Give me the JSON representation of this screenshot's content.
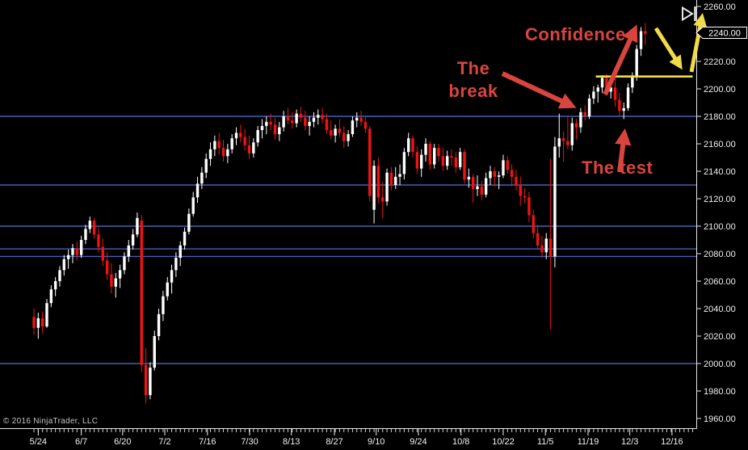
{
  "window": {
    "copyright": "© 2016 NinjaTrader, LLC"
  },
  "annotations": {
    "confidence": "Confidence",
    "break_line1": "The",
    "break_line2": "break",
    "test": "The test",
    "color_red": "#d9453e",
    "color_yellow": "#f0db4a"
  },
  "price_marker": {
    "value": "2240.00"
  },
  "chart_data": {
    "type": "candlestick",
    "title": "",
    "xlabel": "",
    "ylabel": "",
    "background": "#000000",
    "axis_text_color": "#f0f0f0",
    "y_axis": {
      "min": 1960,
      "max": 2260,
      "step": 20,
      "tick_labels": [
        "2260.00",
        "2240.00",
        "2220.00",
        "2200.00",
        "2180.00",
        "2160.00",
        "2140.00",
        "2120.00",
        "2100.00",
        "2080.00",
        "2060.00",
        "2040.00",
        "2020.00",
        "2000.00",
        "1980.00",
        "1960.00"
      ]
    },
    "x_axis": {
      "ticks": [
        {
          "label": "5/24",
          "slot": 1
        },
        {
          "label": "6/7",
          "slot": 11
        },
        {
          "label": "6/20",
          "slot": 20.6
        },
        {
          "label": "7/2",
          "slot": 30.4
        },
        {
          "label": "7/16",
          "slot": 40.3
        },
        {
          "label": "7/30",
          "slot": 50.1
        },
        {
          "label": "8/13",
          "slot": 59.8
        },
        {
          "label": "8/27",
          "slot": 69.8
        },
        {
          "label": "9/10",
          "slot": 79.5
        },
        {
          "label": "9/24",
          "slot": 89.3
        },
        {
          "label": "10/8",
          "slot": 99.2
        },
        {
          "label": "10/22",
          "slot": 109
        },
        {
          "label": "11/5",
          "slot": 118.8
        },
        {
          "label": "11/19",
          "slot": 128.7
        },
        {
          "label": "12/3",
          "slot": 138.4
        },
        {
          "label": "12/16",
          "slot": 148.2
        }
      ]
    },
    "horizontal_lines": {
      "color": "#4660b4",
      "prices": [
        2180,
        2130,
        2100,
        2083.5,
        2078,
        2000
      ]
    },
    "trendline": {
      "color": "#f0db4a",
      "price": 2209,
      "slot_start": 130.5,
      "slot_end": 153
    },
    "bars": {
      "up_color": "#ffffff",
      "down_color": "#f01410",
      "ohlc": [
        [
          2034,
          2040,
          2021,
          2026
        ],
        [
          2026,
          2037,
          2018,
          2033
        ],
        [
          2033,
          2038,
          2022,
          2027
        ],
        [
          2027,
          2047,
          2026,
          2044
        ],
        [
          2044,
          2057,
          2041,
          2054
        ],
        [
          2054,
          2063,
          2049,
          2060
        ],
        [
          2060,
          2071,
          2056,
          2068
        ],
        [
          2068,
          2079,
          2064,
          2076
        ],
        [
          2076,
          2083,
          2069,
          2079
        ],
        [
          2079,
          2087,
          2073,
          2084
        ],
        [
          2084,
          2089,
          2075,
          2079
        ],
        [
          2079,
          2093,
          2077,
          2090
        ],
        [
          2090,
          2101,
          2087,
          2098
        ],
        [
          2098,
          2107,
          2095,
          2104
        ],
        [
          2104,
          2106,
          2091,
          2094
        ],
        [
          2094,
          2099,
          2081,
          2085
        ],
        [
          2085,
          2091,
          2071,
          2075
        ],
        [
          2075,
          2081,
          2061,
          2065
        ],
        [
          2065,
          2073,
          2051,
          2056
        ],
        [
          2056,
          2066,
          2048,
          2062
        ],
        [
          2062,
          2072,
          2055,
          2068
        ],
        [
          2068,
          2081,
          2065,
          2078
        ],
        [
          2078,
          2090,
          2074,
          2086
        ],
        [
          2086,
          2098,
          2083,
          2094
        ],
        [
          2094,
          2110,
          2092,
          2106
        ],
        [
          2104,
          2108,
          1994,
          1999
        ],
        [
          1999,
          2011,
          1971,
          1977
        ],
        [
          1977,
          2001,
          1974,
          1997
        ],
        [
          1997,
          2024,
          1995,
          2020
        ],
        [
          2020,
          2040,
          2017,
          2036
        ],
        [
          2036,
          2053,
          2031,
          2049
        ],
        [
          2049,
          2063,
          2046,
          2059
        ],
        [
          2059,
          2072,
          2051,
          2068
        ],
        [
          2068,
          2081,
          2063,
          2077
        ],
        [
          2077,
          2089,
          2071,
          2086
        ],
        [
          2086,
          2099,
          2083,
          2096
        ],
        [
          2096,
          2113,
          2094,
          2109
        ],
        [
          2109,
          2125,
          2107,
          2121
        ],
        [
          2121,
          2136,
          2117,
          2131
        ],
        [
          2131,
          2143,
          2127,
          2139
        ],
        [
          2139,
          2153,
          2135,
          2149
        ],
        [
          2149,
          2161,
          2144,
          2156
        ],
        [
          2156,
          2166,
          2151,
          2162
        ],
        [
          2162,
          2168,
          2152,
          2157
        ],
        [
          2157,
          2163,
          2147,
          2151
        ],
        [
          2151,
          2160,
          2146,
          2156
        ],
        [
          2156,
          2167,
          2153,
          2164
        ],
        [
          2164,
          2172,
          2159,
          2168
        ],
        [
          2168,
          2174,
          2161,
          2165
        ],
        [
          2165,
          2171,
          2155,
          2159
        ],
        [
          2159,
          2166,
          2149,
          2153
        ],
        [
          2153,
          2164,
          2150,
          2161
        ],
        [
          2161,
          2173,
          2158,
          2170
        ],
        [
          2170,
          2178,
          2164,
          2173
        ],
        [
          2173,
          2180,
          2167,
          2176
        ],
        [
          2176,
          2182,
          2170,
          2174
        ],
        [
          2174,
          2179,
          2163,
          2167
        ],
        [
          2167,
          2176,
          2162,
          2172
        ],
        [
          2172,
          2184,
          2169,
          2180
        ],
        [
          2180,
          2186,
          2174,
          2177
        ],
        [
          2177,
          2183,
          2171,
          2175
        ],
        [
          2175,
          2185,
          2172,
          2182
        ],
        [
          2182,
          2187,
          2176,
          2179
        ],
        [
          2179,
          2184,
          2170,
          2173
        ],
        [
          2173,
          2180,
          2166,
          2176
        ],
        [
          2176,
          2183,
          2172,
          2179
        ],
        [
          2179,
          2185,
          2174,
          2181
        ],
        [
          2181,
          2186,
          2175,
          2178
        ],
        [
          2178,
          2182,
          2167,
          2170
        ],
        [
          2170,
          2177,
          2163,
          2166
        ],
        [
          2166,
          2174,
          2161,
          2171
        ],
        [
          2171,
          2178,
          2165,
          2168
        ],
        [
          2168,
          2173,
          2157,
          2162
        ],
        [
          2162,
          2170,
          2158,
          2167
        ],
        [
          2167,
          2180,
          2165,
          2177
        ],
        [
          2177,
          2183,
          2172,
          2179
        ],
        [
          2179,
          2184,
          2173,
          2176
        ],
        [
          2176,
          2180,
          2168,
          2171
        ],
        [
          2171,
          2173,
          2118,
          2122
        ],
        [
          2112,
          2148,
          2102,
          2144
        ],
        [
          2144,
          2150,
          2117,
          2121
        ],
        [
          2121,
          2132,
          2106,
          2118
        ],
        [
          2118,
          2142,
          2115,
          2139
        ],
        [
          2139,
          2143,
          2126,
          2130
        ],
        [
          2130,
          2143,
          2127,
          2136
        ],
        [
          2136,
          2145,
          2130,
          2138
        ],
        [
          2138,
          2157,
          2134,
          2154
        ],
        [
          2154,
          2168,
          2151,
          2164
        ],
        [
          2164,
          2166,
          2150,
          2154
        ],
        [
          2154,
          2158,
          2138,
          2142
        ],
        [
          2142,
          2156,
          2136,
          2152
        ],
        [
          2152,
          2164,
          2147,
          2160
        ],
        [
          2160,
          2162,
          2141,
          2145
        ],
        [
          2145,
          2160,
          2142,
          2157
        ],
        [
          2157,
          2160,
          2147,
          2151
        ],
        [
          2151,
          2157,
          2140,
          2144
        ],
        [
          2144,
          2155,
          2141,
          2151
        ],
        [
          2151,
          2156,
          2144,
          2150
        ],
        [
          2150,
          2154,
          2139,
          2143
        ],
        [
          2143,
          2157,
          2141,
          2154
        ],
        [
          2154,
          2156,
          2131,
          2134
        ],
        [
          2134,
          2142,
          2128,
          2136
        ],
        [
          2136,
          2138,
          2117,
          2127
        ],
        [
          2127,
          2137,
          2122,
          2129
        ],
        [
          2129,
          2133,
          2119,
          2123
        ],
        [
          2123,
          2139,
          2121,
          2135
        ],
        [
          2135,
          2144,
          2130,
          2140
        ],
        [
          2140,
          2143,
          2129,
          2136
        ],
        [
          2136,
          2140,
          2127,
          2137
        ],
        [
          2137,
          2152,
          2135,
          2148
        ],
        [
          2148,
          2151,
          2138,
          2141
        ],
        [
          2141,
          2145,
          2129,
          2136
        ],
        [
          2136,
          2141,
          2126,
          2130
        ],
        [
          2130,
          2136,
          2115,
          2122
        ],
        [
          2122,
          2128,
          2117,
          2121
        ],
        [
          2121,
          2125,
          2103,
          2108
        ],
        [
          2108,
          2112,
          2091,
          2095
        ],
        [
          2095,
          2101,
          2083,
          2086
        ],
        [
          2086,
          2093,
          2077,
          2081
        ],
        [
          2081,
          2095,
          2076,
          2091
        ],
        [
          2091,
          2149,
          2025,
          2078
        ],
        [
          2078,
          2165,
          2070,
          2158
        ],
        [
          2158,
          2182,
          2150,
          2164
        ],
        [
          2164,
          2169,
          2147,
          2162
        ],
        [
          2162,
          2180,
          2156,
          2159
        ],
        [
          2159,
          2179,
          2155,
          2175
        ],
        [
          2175,
          2178,
          2163,
          2172
        ],
        [
          2172,
          2186,
          2168,
          2183
        ],
        [
          2183,
          2188,
          2177,
          2180
        ],
        [
          2180,
          2196,
          2178,
          2193
        ],
        [
          2193,
          2202,
          2189,
          2198
        ],
        [
          2198,
          2203,
          2190,
          2201
        ],
        [
          2201,
          2210,
          2197,
          2208
        ],
        [
          2208,
          2211,
          2195,
          2198
        ],
        [
          2198,
          2206,
          2193,
          2201
        ],
        [
          2201,
          2208,
          2187,
          2192
        ],
        [
          2192,
          2197,
          2180,
          2184
        ],
        [
          2184,
          2190,
          2178,
          2186
        ],
        [
          2186,
          2204,
          2184,
          2201
        ],
        [
          2201,
          2212,
          2197,
          2209
        ],
        [
          2209,
          2232,
          2206,
          2229
        ],
        [
          2229,
          2245,
          2224,
          2242
        ],
        [
          2242,
          2248,
          2232,
          2240
        ]
      ]
    }
  }
}
